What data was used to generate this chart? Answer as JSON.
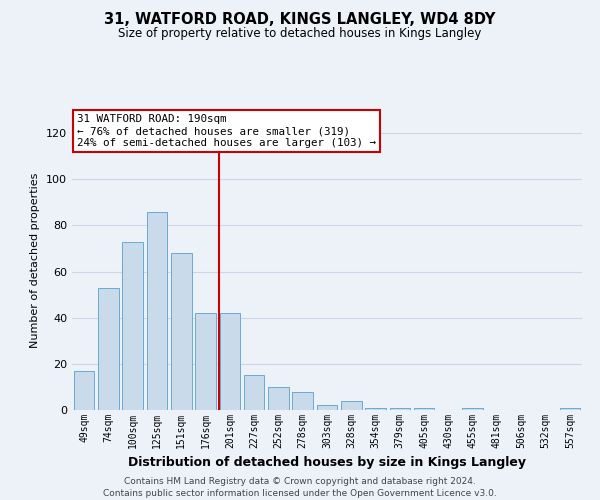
{
  "title": "31, WATFORD ROAD, KINGS LANGLEY, WD4 8DY",
  "subtitle": "Size of property relative to detached houses in Kings Langley",
  "xlabel": "Distribution of detached houses by size in Kings Langley",
  "ylabel": "Number of detached properties",
  "bar_labels": [
    "49sqm",
    "74sqm",
    "100sqm",
    "125sqm",
    "151sqm",
    "176sqm",
    "201sqm",
    "227sqm",
    "252sqm",
    "278sqm",
    "303sqm",
    "328sqm",
    "354sqm",
    "379sqm",
    "405sqm",
    "430sqm",
    "455sqm",
    "481sqm",
    "506sqm",
    "532sqm",
    "557sqm"
  ],
  "bar_values": [
    17,
    53,
    73,
    86,
    68,
    42,
    42,
    15,
    10,
    8,
    2,
    4,
    1,
    1,
    1,
    0,
    1,
    0,
    0,
    0,
    1
  ],
  "bar_color": "#c9daea",
  "bar_edge_color": "#6aaad4",
  "vline_color": "#cc0000",
  "annotation_text": "31 WATFORD ROAD: 190sqm\n← 76% of detached houses are smaller (319)\n24% of semi-detached houses are larger (103) →",
  "annotation_box_color": "white",
  "annotation_box_edge_color": "#cc0000",
  "ylim": [
    0,
    130
  ],
  "yticks": [
    0,
    20,
    40,
    60,
    80,
    100,
    120
  ],
  "grid_color": "#ccd6e8",
  "bg_color": "#edf2f9",
  "footer": "Contains HM Land Registry data © Crown copyright and database right 2024.\nContains public sector information licensed under the Open Government Licence v3.0.",
  "title_fontsize": 10.5,
  "subtitle_fontsize": 8.5,
  "xlabel_fontsize": 9,
  "ylabel_fontsize": 8,
  "footer_fontsize": 6.5,
  "annotation_fontsize": 7.8
}
